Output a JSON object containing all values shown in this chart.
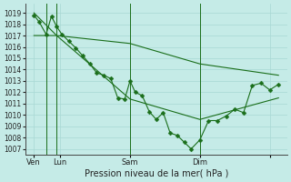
{
  "xlabel": "Pression niveau de la mer( hPa )",
  "background_color": "#c5ebe7",
  "grid_color": "#a8d8d4",
  "line_color": "#1a6e1a",
  "ylim": [
    1006.5,
    1019.8
  ],
  "yticks": [
    1007,
    1008,
    1009,
    1010,
    1011,
    1012,
    1013,
    1014,
    1015,
    1016,
    1017,
    1018,
    1019
  ],
  "xlim": [
    -0.5,
    14.5
  ],
  "xtick_positions": [
    0,
    1.5,
    5.5,
    9.5,
    13.5
  ],
  "xtick_labels": [
    "Ven",
    "Lun",
    "Sam",
    "Dim",
    ""
  ],
  "vline_positions": [
    0.7,
    1.3,
    5.5,
    9.5
  ],
  "s1x": [
    0.0,
    0.3,
    0.7,
    1.0,
    1.3,
    1.6,
    2.0,
    2.4,
    2.8,
    3.2,
    3.6,
    4.0,
    4.4,
    4.8,
    5.2,
    5.5,
    5.8,
    6.2,
    6.6,
    7.0,
    7.4,
    7.8,
    8.2,
    8.6,
    9.0,
    9.5,
    10.0,
    10.5,
    11.0,
    11.5,
    12.0,
    12.5,
    13.0,
    13.5,
    14.0
  ],
  "s1y": [
    1018.8,
    1018.2,
    1017.1,
    1018.7,
    1017.8,
    1017.1,
    1016.5,
    1015.9,
    1015.2,
    1014.5,
    1013.7,
    1013.5,
    1013.2,
    1011.5,
    1011.4,
    1013.0,
    1012.0,
    1011.7,
    1010.3,
    1009.6,
    1010.2,
    1008.4,
    1008.2,
    1007.6,
    1007.0,
    1007.8,
    1009.5,
    1009.5,
    1009.9,
    1010.5,
    1010.2,
    1012.6,
    1012.8,
    1012.2,
    1012.7
  ],
  "s2x": [
    0.0,
    1.3,
    5.5,
    9.5,
    14.0
  ],
  "s2y": [
    1019.0,
    1017.0,
    1016.3,
    1014.5,
    1013.5
  ],
  "s3x": [
    0.0,
    1.3,
    5.5,
    9.5,
    14.0
  ],
  "s3y": [
    1017.0,
    1017.0,
    1011.4,
    1009.6,
    1011.5
  ],
  "vlines": [
    0.7,
    1.3,
    5.5,
    9.5
  ]
}
